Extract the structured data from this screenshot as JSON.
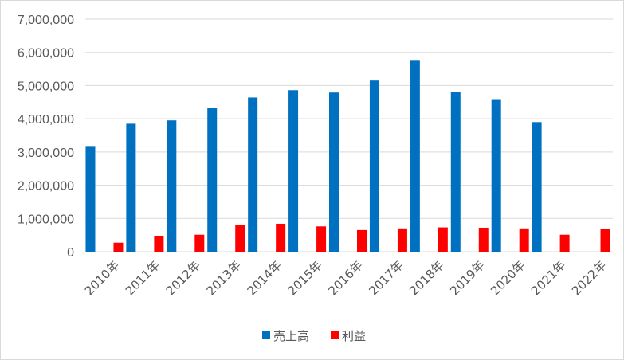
{
  "chart_data": {
    "type": "bar",
    "title": "",
    "xlabel": "",
    "ylabel": "",
    "categories": [
      "2010年",
      "2011年",
      "2012年",
      "2013年",
      "2014年",
      "2015年",
      "2016年",
      "2017年",
      "2018年",
      "2019年",
      "2020年",
      "2021年",
      "2022年"
    ],
    "series": [
      {
        "name": "売上高",
        "color": "#0070C0",
        "values": [
          3180000,
          3850000,
          3950000,
          4330000,
          4640000,
          4860000,
          4790000,
          5150000,
          5770000,
          4810000,
          4590000,
          3900000,
          null
        ]
      },
      {
        "name": "利益",
        "color": "#FF0000",
        "values": [
          270000,
          480000,
          510000,
          800000,
          840000,
          760000,
          650000,
          700000,
          730000,
          720000,
          700000,
          510000,
          680000
        ]
      }
    ],
    "ylim": [
      0,
      7000000
    ],
    "yticks": [
      0,
      1000000,
      2000000,
      3000000,
      4000000,
      5000000,
      6000000,
      7000000
    ],
    "ytick_labels": [
      "0",
      "1,000,000",
      "2,000,000",
      "3,000,000",
      "4,000,000",
      "5,000,000",
      "6,000,000",
      "7,000,000"
    ],
    "grid": true,
    "legend_position": "bottom"
  }
}
